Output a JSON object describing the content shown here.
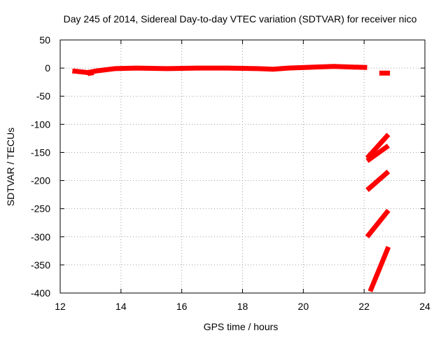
{
  "chart_data": {
    "type": "line",
    "title": "Day 245 of 2014, Sidereal Day-to-day VTEC variation (SDTVAR) for receiver nico",
    "xlabel": "GPS time / hours",
    "ylabel": "SDTVAR / TECUs",
    "xlim": [
      12,
      24
    ],
    "ylim": [
      -400,
      50
    ],
    "xticks": [
      12,
      14,
      16,
      18,
      20,
      22,
      24
    ],
    "yticks": [
      50,
      0,
      -50,
      -100,
      -150,
      -200,
      -250,
      -300,
      -350,
      -400
    ],
    "grid": true,
    "grid_style": "dotted",
    "legend": "none",
    "series_color": "#ff0000",
    "series": [
      {
        "x": [
          12.4,
          12.9,
          13.2,
          13.8,
          14.5,
          15.5,
          16.5,
          17.5,
          18.5,
          19.0,
          19.5,
          20.5,
          21.0,
          21.5,
          22.1
        ],
        "y": [
          -5,
          -8,
          -5,
          -1,
          0,
          -1,
          0,
          0,
          -1,
          -2,
          0,
          2,
          3,
          2,
          1
        ]
      },
      {
        "x": [
          12.9,
          13.1
        ],
        "y": [
          -10,
          -8
        ]
      },
      {
        "x": [
          22.5,
          22.85
        ],
        "y": [
          -9,
          -9
        ]
      },
      {
        "x": [
          22.1,
          22.8
        ],
        "y": [
          -160,
          -118
        ]
      },
      {
        "x": [
          22.1,
          22.8
        ],
        "y": [
          -165,
          -138
        ]
      },
      {
        "x": [
          22.1,
          22.8
        ],
        "y": [
          -217,
          -184
        ]
      },
      {
        "x": [
          22.1,
          22.8
        ],
        "y": [
          -300,
          -253
        ]
      },
      {
        "x": [
          22.2,
          22.8
        ],
        "y": [
          -397,
          -318
        ]
      }
    ]
  }
}
